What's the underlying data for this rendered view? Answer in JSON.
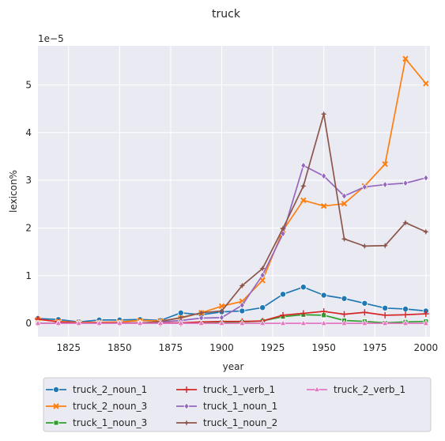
{
  "chart_data": {
    "type": "line",
    "title": "truck",
    "xlabel": "year",
    "ylabel": "lexicon%",
    "y_scale_label": "1e−5",
    "xlim": [
      1810,
      2002
    ],
    "ylim": [
      -0.28,
      5.82
    ],
    "x_ticks": [
      1825,
      1850,
      1875,
      1900,
      1925,
      1950,
      1975,
      2000
    ],
    "y_ticks": [
      0,
      1,
      2,
      3,
      4,
      5
    ],
    "grid": true,
    "background": "#eaeaf2",
    "legend_position": "bottom-center, 3 columns",
    "x": [
      1810,
      1820,
      1830,
      1840,
      1850,
      1860,
      1870,
      1880,
      1890,
      1900,
      1910,
      1920,
      1930,
      1940,
      1950,
      1960,
      1970,
      1980,
      1990,
      2000
    ],
    "series": [
      {
        "name": "truck_2_noun_1",
        "color": "#1f77b4",
        "marker": "circle",
        "values": [
          0.1,
          0.08,
          0.03,
          0.07,
          0.07,
          0.08,
          0.06,
          0.22,
          0.18,
          0.24,
          0.26,
          0.33,
          0.61,
          0.76,
          0.59,
          0.52,
          0.42,
          0.32,
          0.3,
          0.26
        ]
      },
      {
        "name": "truck_2_noun_3",
        "color": "#ff7f0e",
        "marker": "x",
        "values": [
          0.08,
          0.04,
          0.02,
          0.02,
          0.03,
          0.06,
          0.05,
          0.11,
          0.22,
          0.36,
          0.46,
          0.9,
          1.95,
          2.58,
          2.46,
          2.51,
          2.88,
          3.34,
          5.55,
          5.03
        ]
      },
      {
        "name": "truck_1_noun_3",
        "color": "#2ca02c",
        "marker": "square",
        "values": [
          0.0,
          0.0,
          0.0,
          0.0,
          0.0,
          0.0,
          0.0,
          0.0,
          0.01,
          0.02,
          0.03,
          0.05,
          0.14,
          0.18,
          0.17,
          0.06,
          0.04,
          0.01,
          0.03,
          0.04
        ]
      },
      {
        "name": "truck_1_verb_1",
        "color": "#d62728",
        "marker": "plus",
        "values": [
          0.09,
          0.03,
          0.01,
          0.01,
          0.01,
          0.01,
          0.01,
          0.01,
          0.03,
          0.04,
          0.04,
          0.05,
          0.17,
          0.21,
          0.25,
          0.19,
          0.23,
          0.17,
          0.18,
          0.2
        ]
      },
      {
        "name": "truck_1_noun_1",
        "color": "#9467bd",
        "marker": "diamond",
        "values": [
          0.0,
          0.0,
          0.0,
          0.0,
          0.0,
          0.01,
          0.03,
          0.06,
          0.11,
          0.12,
          0.38,
          1.01,
          1.88,
          3.31,
          3.09,
          2.67,
          2.86,
          2.91,
          2.94,
          3.05
        ]
      },
      {
        "name": "truck_1_noun_2",
        "color": "#8c564b",
        "marker": "star",
        "values": [
          0.0,
          0.0,
          0.0,
          0.0,
          0.0,
          0.0,
          0.04,
          0.12,
          0.22,
          0.26,
          0.79,
          1.15,
          1.99,
          2.88,
          4.39,
          1.77,
          1.62,
          1.63,
          2.11,
          1.92
        ]
      },
      {
        "name": "truck_2_verb_1",
        "color": "#e377c2",
        "marker": "triangle",
        "values": [
          0.0,
          0.0,
          0.0,
          0.0,
          0.0,
          0.0,
          0.0,
          0.0,
          0.0,
          0.0,
          0.0,
          0.0,
          0.0,
          0.0,
          0.0,
          0.0,
          0.0,
          0.0,
          0.0,
          0.0
        ]
      }
    ]
  }
}
